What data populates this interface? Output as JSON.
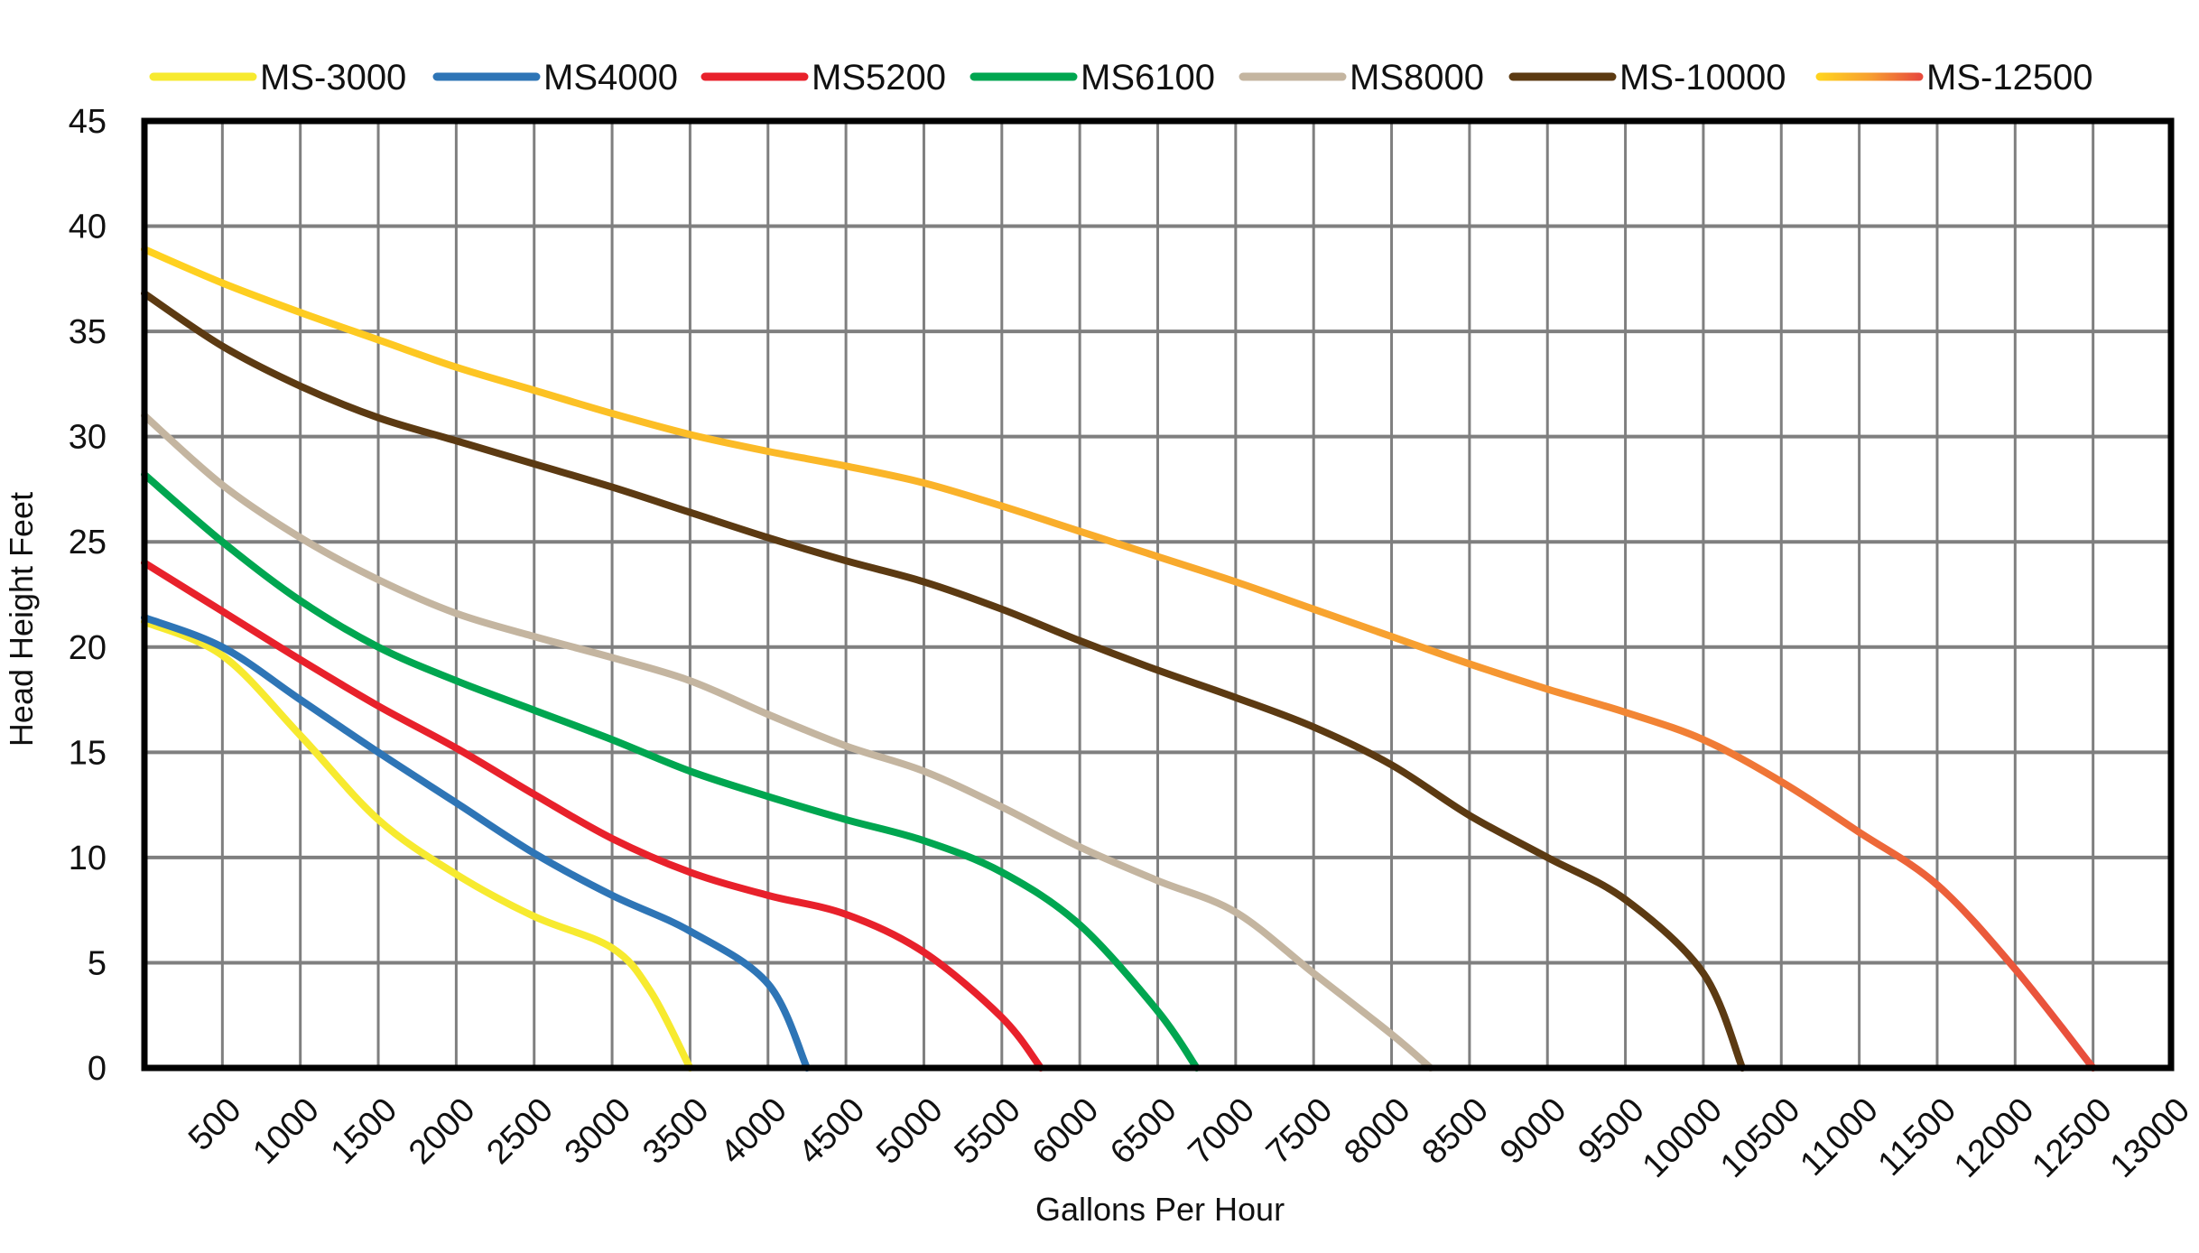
{
  "chart_data": {
    "type": "line",
    "title": "",
    "xlabel": "Gallons Per Hour",
    "ylabel": "Head Height Feet",
    "xlim": [
      0,
      13000
    ],
    "ylim": [
      0,
      45
    ],
    "grid": true,
    "legend": "top",
    "x_ticks": [
      "500",
      "1000",
      "1500",
      "2000",
      "2500",
      "3000",
      "3500",
      "4000",
      "4500",
      "5000",
      "5500",
      "6000",
      "6500",
      "7000",
      "7500",
      "8000",
      "8500",
      "9000",
      "9500",
      "10000",
      "10500",
      "11000",
      "11500",
      "12000",
      "12500",
      "13000"
    ],
    "y_ticks": [
      "0",
      "5",
      "10",
      "15",
      "20",
      "25",
      "30",
      "35",
      "40",
      "45"
    ],
    "series": [
      {
        "name": "MS-3000",
        "color": "#f7ea2f",
        "x": [
          0,
          500,
          1000,
          1500,
          2000,
          2500,
          3000,
          3250,
          3500
        ],
        "y": [
          21.2,
          19.6,
          15.8,
          11.8,
          9.2,
          7.2,
          5.7,
          3.6,
          0
        ]
      },
      {
        "name": "MS4000",
        "color": "#2e75b6",
        "x": [
          0,
          500,
          1000,
          1500,
          2000,
          2500,
          3000,
          3500,
          4000,
          4250
        ],
        "y": [
          21.4,
          20,
          17.5,
          15,
          12.6,
          10.2,
          8.2,
          6.5,
          4,
          0
        ]
      },
      {
        "name": "MS5200",
        "color": "#e8212b",
        "x": [
          0,
          500,
          1000,
          1500,
          2000,
          2500,
          3000,
          3500,
          4000,
          4500,
          5000,
          5500,
          5750
        ],
        "y": [
          24,
          21.7,
          19.4,
          17.2,
          15.2,
          13,
          10.9,
          9.3,
          8.2,
          7.3,
          5.5,
          2.4,
          0
        ]
      },
      {
        "name": "MS6100",
        "color": "#00a650",
        "x": [
          0,
          500,
          1000,
          1500,
          2000,
          2500,
          3000,
          3500,
          4000,
          4500,
          5000,
          5500,
          6000,
          6500,
          6750
        ],
        "y": [
          28.2,
          25,
          22.2,
          20,
          18.4,
          17,
          15.6,
          14.1,
          12.9,
          11.8,
          10.8,
          9.3,
          6.8,
          2.7,
          0
        ]
      },
      {
        "name": "MS8000",
        "color": "#c4b5a0",
        "x": [
          0,
          500,
          1000,
          1500,
          2000,
          2500,
          3000,
          3500,
          4000,
          4500,
          5000,
          5500,
          6000,
          6500,
          7000,
          7500,
          8000,
          8250
        ],
        "y": [
          31,
          27.7,
          25.2,
          23.2,
          21.6,
          20.5,
          19.5,
          18.4,
          16.8,
          15.3,
          14.1,
          12.4,
          10.5,
          8.9,
          7.4,
          4.5,
          1.6,
          0
        ]
      },
      {
        "name": "MS-10000",
        "color": "#5c3a12",
        "x": [
          0,
          500,
          1000,
          1500,
          2000,
          2500,
          3000,
          3500,
          4000,
          4500,
          5000,
          5500,
          6000,
          6500,
          7000,
          7500,
          8000,
          8500,
          9000,
          9500,
          10000,
          10250
        ],
        "y": [
          36.8,
          34.3,
          32.4,
          30.9,
          29.8,
          28.7,
          27.6,
          26.4,
          25.2,
          24.1,
          23.1,
          21.8,
          20.3,
          18.9,
          17.6,
          16.2,
          14.4,
          12,
          10,
          8,
          4.5,
          0
        ]
      },
      {
        "name": "MS-12500",
        "color": "#f39a2e",
        "gradient": [
          "#ffd21f",
          "#f7a030",
          "#e84c3d"
        ],
        "x": [
          0,
          500,
          1000,
          1500,
          2000,
          2500,
          3000,
          3500,
          4000,
          4500,
          5000,
          5500,
          6000,
          6500,
          7000,
          7500,
          8000,
          8500,
          9000,
          9500,
          10000,
          10500,
          11000,
          11500,
          12000,
          12500
        ],
        "y": [
          38.9,
          37.3,
          35.9,
          34.6,
          33.3,
          32.2,
          31.1,
          30.1,
          29.3,
          28.6,
          27.8,
          26.7,
          25.5,
          24.3,
          23.1,
          21.8,
          20.5,
          19.2,
          18,
          16.9,
          15.6,
          13.6,
          11.2,
          8.7,
          4.7,
          0
        ]
      }
    ]
  }
}
